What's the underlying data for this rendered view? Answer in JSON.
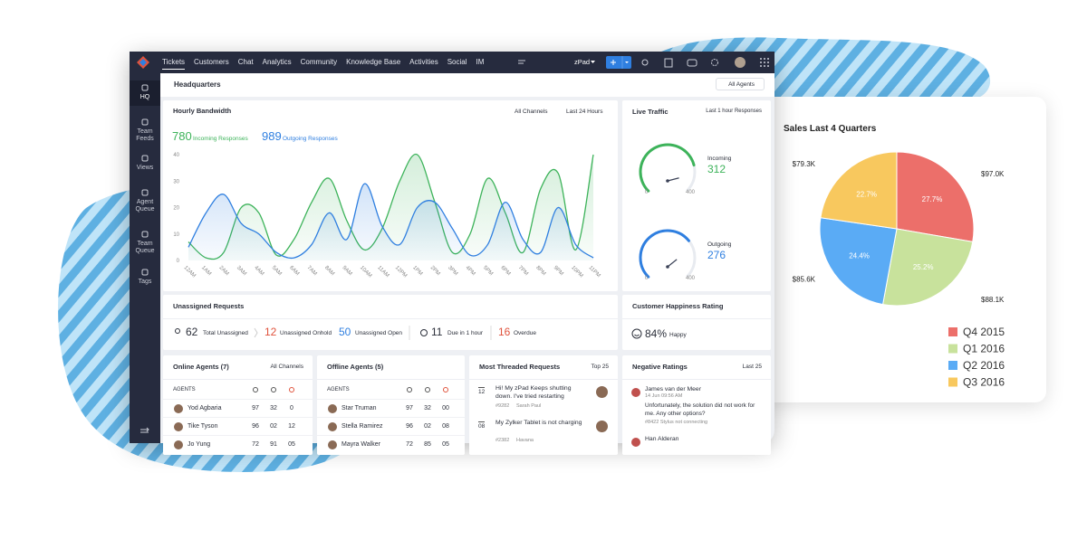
{
  "nav": {
    "tabs": [
      "Tickets",
      "Customers",
      "Chat",
      "Analytics",
      "Community",
      "Knowledge Base",
      "Activities",
      "Social",
      "IM"
    ],
    "portal": "zPad"
  },
  "sidebar": [
    "HQ",
    "Team Feeds",
    "Views",
    "Agent Queue",
    "Team Queue",
    "Tags"
  ],
  "header": {
    "title": "Headquarters",
    "filter": "All Agents"
  },
  "bandwidth_filters": [
    "All Channels",
    "Last 24 Hours"
  ],
  "live_traffic": {
    "title": "Live Traffic",
    "range": "Last 1 hour Responses",
    "gauges": [
      {
        "name": "Incoming",
        "value": 312,
        "min": 0,
        "max": 400,
        "color": "#3db35a"
      },
      {
        "name": "Outgoing",
        "value": 276,
        "min": 0,
        "max": 400,
        "color": "#2f7fe0"
      }
    ]
  },
  "unassigned": {
    "title": "Unassigned Requests",
    "items": [
      {
        "value": 62,
        "label": "Total Unassigned",
        "color": "#2b2f3a"
      },
      {
        "value": 12,
        "label": "Unassigned Onhold",
        "color": "#e0533d"
      },
      {
        "value": 50,
        "label": "Unassigned Open",
        "color": "#2f7fe0"
      },
      {
        "value": 11,
        "label": "Due in 1 hour",
        "color": "#2b2f3a"
      },
      {
        "value": 16,
        "label": "Overdue",
        "color": "#e0533d"
      }
    ]
  },
  "happiness": {
    "title": "Customer Happiness Rating",
    "value": "84%",
    "label": "Happy"
  },
  "online_agents": {
    "title": "Online Agents (7)",
    "filter": "All Channels",
    "column": "AGENTS",
    "rows": [
      [
        "Yod Agbaria",
        "97",
        "32",
        "0"
      ],
      [
        "Tike Tyson",
        "96",
        "02",
        "12"
      ],
      [
        "Jo Yung",
        "72",
        "91",
        "05"
      ]
    ]
  },
  "offline_agents": {
    "title": "Offline Agents (5)",
    "column": "AGENTS",
    "rows": [
      [
        "Star Truman",
        "97",
        "32",
        "00"
      ],
      [
        "Stella Ramirez",
        "96",
        "02",
        "08"
      ],
      [
        "Mayra Walker",
        "72",
        "85",
        "05"
      ]
    ]
  },
  "threaded": {
    "title": "Most Threaded Requests",
    "filter": "Top 25",
    "items": [
      {
        "count": "12",
        "text": "Hi! My zPad Keeps shutting down. I've tried restarting",
        "id": "#9282",
        "user": "Sarah Paul"
      },
      {
        "count": "08",
        "text": "My Zylker Tablet is not charging",
        "id": "#2382",
        "user": "Havana"
      }
    ]
  },
  "negative": {
    "title": "Negative Ratings",
    "filter": "Last 25",
    "items": [
      {
        "name": "James van der Meer",
        "date": "14 Jun 09:56 AM",
        "text": "Unfortunately, the solution did not work for me. Any other options?",
        "meta": "#8422 Stylus not connecting"
      },
      {
        "name": "Han Alderan"
      }
    ]
  },
  "chart_data": [
    {
      "type": "line",
      "title": "Hourly Bandwidth",
      "categories": [
        "12AM",
        "1AM",
        "2AM",
        "3AM",
        "4AM",
        "5AM",
        "6AM",
        "7AM",
        "8AM",
        "9AM",
        "10AM",
        "11AM",
        "12PM",
        "1PM",
        "2PM",
        "3PM",
        "4PM",
        "5PM",
        "6PM",
        "7PM",
        "8PM",
        "9PM",
        "10PM",
        "11PM"
      ],
      "series": [
        {
          "name": "Incoming Responses",
          "total": 780,
          "color": "#3db35a",
          "values": [
            7,
            1,
            3,
            20,
            18,
            2,
            8,
            22,
            31,
            15,
            4,
            12,
            30,
            40,
            22,
            3,
            10,
            31,
            18,
            3,
            27,
            33,
            4,
            40
          ]
        },
        {
          "name": "Outgoing Responses",
          "total": 989,
          "color": "#2f7fe0",
          "values": [
            5,
            18,
            25,
            14,
            10,
            3,
            1,
            6,
            18,
            8,
            29,
            13,
            6,
            20,
            22,
            12,
            2,
            6,
            22,
            8,
            3,
            20,
            6,
            1
          ]
        }
      ],
      "ylim": [
        0,
        40
      ],
      "yticks": [
        0,
        10,
        20,
        30,
        40
      ],
      "grid": false
    },
    {
      "type": "pie",
      "title": "Sales Last 4 Quarters",
      "categories": [
        "Q4 2015",
        "Q1 2016",
        "Q2 2016",
        "Q3 2016"
      ],
      "values": [
        27.7,
        25.2,
        24.4,
        22.7
      ],
      "value_labels": [
        "27.7%",
        "25.2%",
        "24.4%",
        "22.7%"
      ],
      "amount_labels": [
        "$97.0K",
        "$88.1K",
        "$85.6K",
        "$79.3K"
      ],
      "colors": [
        "#ec6f6a",
        "#c8e29c",
        "#5aabf5",
        "#f8c85e"
      ]
    }
  ]
}
